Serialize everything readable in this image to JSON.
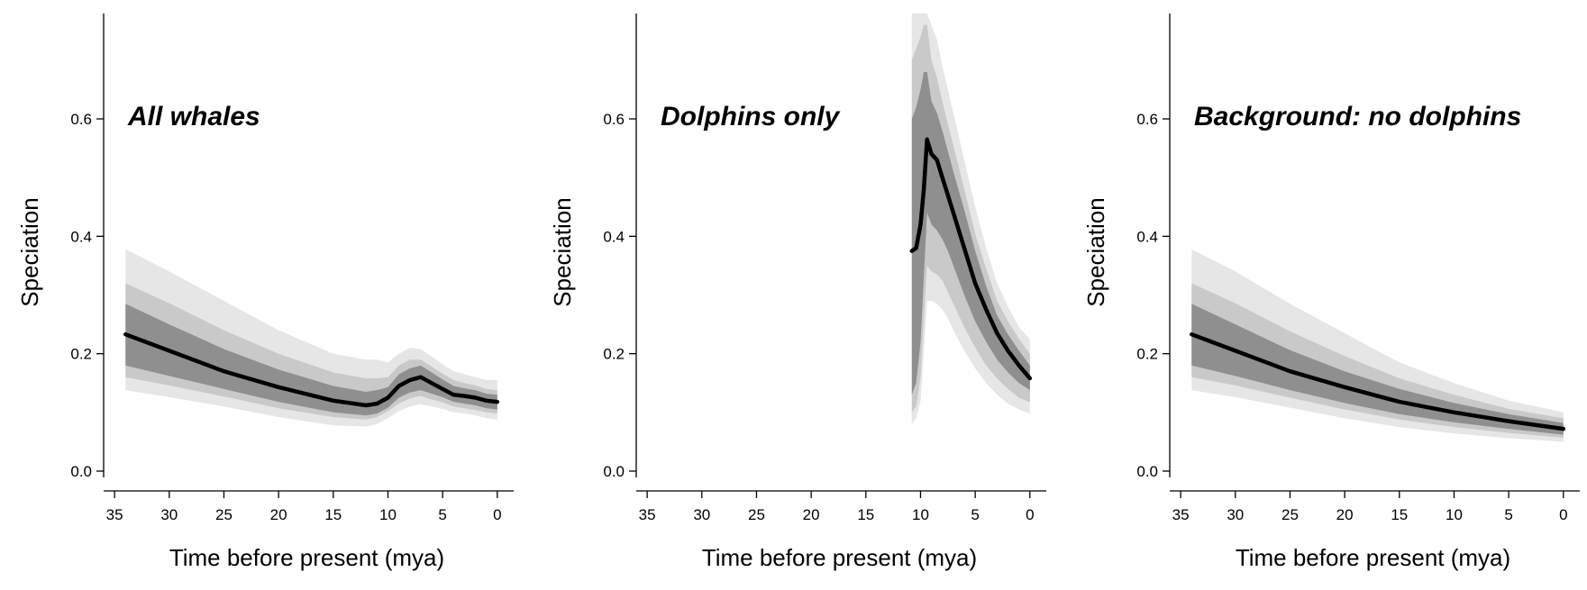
{
  "chart_data": [
    {
      "type": "area",
      "title": "All whales",
      "xlabel": "Time before present (mya)",
      "ylabel": "Speciation",
      "xlim": [
        36,
        -1.5
      ],
      "ylim": [
        -0.02,
        0.78
      ],
      "x_ticks": [
        35,
        30,
        25,
        20,
        15,
        10,
        5,
        0
      ],
      "y_ticks": [
        0.0,
        0.2,
        0.4,
        0.6
      ],
      "x_tick_labels": [
        "35",
        "30",
        "25",
        "20",
        "15",
        "10",
        "5",
        "0"
      ],
      "y_tick_labels": [
        "0.0",
        "0.2",
        "0.4",
        "0.6"
      ],
      "x": [
        34,
        30,
        25,
        20,
        15,
        12,
        11,
        10,
        9,
        8,
        7,
        6,
        5,
        4,
        3,
        2,
        1,
        0
      ],
      "median": [
        0.233,
        0.205,
        0.17,
        0.143,
        0.12,
        0.112,
        0.115,
        0.125,
        0.145,
        0.155,
        0.16,
        0.15,
        0.14,
        0.13,
        0.128,
        0.125,
        0.12,
        0.118
      ],
      "bands": [
        {
          "lower": [
            0.138,
            0.126,
            0.11,
            0.092,
            0.078,
            0.076,
            0.08,
            0.09,
            0.102,
            0.11,
            0.114,
            0.11,
            0.106,
            0.1,
            0.098,
            0.095,
            0.09,
            0.088
          ],
          "upper": [
            0.378,
            0.34,
            0.29,
            0.24,
            0.2,
            0.19,
            0.19,
            0.185,
            0.2,
            0.21,
            0.208,
            0.195,
            0.182,
            0.17,
            0.165,
            0.16,
            0.155,
            0.155
          ]
        },
        {
          "lower": [
            0.16,
            0.146,
            0.127,
            0.107,
            0.092,
            0.088,
            0.092,
            0.102,
            0.115,
            0.124,
            0.128,
            0.122,
            0.117,
            0.11,
            0.107,
            0.104,
            0.1,
            0.098
          ],
          "upper": [
            0.32,
            0.286,
            0.24,
            0.2,
            0.168,
            0.158,
            0.158,
            0.16,
            0.18,
            0.19,
            0.19,
            0.178,
            0.166,
            0.155,
            0.15,
            0.146,
            0.14,
            0.138
          ]
        },
        {
          "lower": [
            0.18,
            0.162,
            0.14,
            0.118,
            0.1,
            0.095,
            0.098,
            0.108,
            0.125,
            0.134,
            0.138,
            0.132,
            0.126,
            0.118,
            0.115,
            0.112,
            0.107,
            0.105
          ],
          "upper": [
            0.285,
            0.25,
            0.208,
            0.173,
            0.145,
            0.135,
            0.138,
            0.143,
            0.165,
            0.175,
            0.18,
            0.168,
            0.156,
            0.145,
            0.141,
            0.138,
            0.132,
            0.13
          ]
        }
      ],
      "band_colors": [
        "#e6e6e6",
        "#c9c9c9",
        "#8f8f8f"
      ],
      "line_color": "#000000"
    },
    {
      "type": "area",
      "title": "Dolphins only",
      "xlabel": "Time before present (mya)",
      "ylabel": "Speciation",
      "xlim": [
        36,
        -1.5
      ],
      "ylim": [
        -0.02,
        0.78
      ],
      "x_ticks": [
        35,
        30,
        25,
        20,
        15,
        10,
        5,
        0
      ],
      "y_ticks": [
        0.0,
        0.2,
        0.4,
        0.6
      ],
      "x_tick_labels": [
        "35",
        "30",
        "25",
        "20",
        "15",
        "10",
        "5",
        "0"
      ],
      "y_tick_labels": [
        "0.0",
        "0.2",
        "0.4",
        "0.6"
      ],
      "x": [
        10.8,
        10.4,
        10.0,
        9.7,
        9.4,
        9.0,
        8.5,
        8.0,
        7.5,
        7.0,
        6.0,
        5.0,
        4.0,
        3.0,
        2.0,
        1.0,
        0
      ],
      "median": [
        0.375,
        0.38,
        0.42,
        0.48,
        0.565,
        0.54,
        0.53,
        0.5,
        0.47,
        0.44,
        0.38,
        0.32,
        0.275,
        0.235,
        0.205,
        0.18,
        0.158
      ],
      "bands": [
        {
          "lower": [
            0.08,
            0.09,
            0.12,
            0.2,
            0.29,
            0.29,
            0.285,
            0.275,
            0.26,
            0.24,
            0.205,
            0.175,
            0.15,
            0.13,
            0.115,
            0.105,
            0.098
          ],
          "upper": [
            0.78,
            0.78,
            0.78,
            0.78,
            0.78,
            0.76,
            0.735,
            0.69,
            0.65,
            0.61,
            0.53,
            0.45,
            0.38,
            0.32,
            0.28,
            0.245,
            0.225
          ]
        },
        {
          "lower": [
            0.1,
            0.11,
            0.16,
            0.26,
            0.35,
            0.34,
            0.335,
            0.325,
            0.305,
            0.285,
            0.245,
            0.21,
            0.18,
            0.158,
            0.14,
            0.125,
            0.117
          ]
        },
        {
          "lower": [
            0.13,
            0.15,
            0.22,
            0.33,
            0.44,
            0.42,
            0.41,
            0.395,
            0.375,
            0.35,
            0.3,
            0.255,
            0.22,
            0.19,
            0.168,
            0.15,
            0.138
          ]
        }
      ],
      "band_uppers": [
        [
          0.7,
          0.72,
          0.74,
          0.76,
          0.76,
          0.7,
          0.67,
          0.63,
          0.59,
          0.555,
          0.48,
          0.405,
          0.345,
          0.29,
          0.255,
          0.225,
          0.2
        ],
        [
          0.6,
          0.62,
          0.65,
          0.68,
          0.68,
          0.63,
          0.61,
          0.58,
          0.545,
          0.51,
          0.445,
          0.375,
          0.315,
          0.265,
          0.233,
          0.205,
          0.18
        ]
      ],
      "band_colors": [
        "#e6e6e6",
        "#c9c9c9",
        "#8f8f8f"
      ],
      "line_color": "#000000"
    },
    {
      "type": "area",
      "title": "Background: no dolphins",
      "xlabel": "Time before present (mya)",
      "ylabel": "Speciation",
      "xlim": [
        36,
        -1.5
      ],
      "ylim": [
        -0.02,
        0.78
      ],
      "x_ticks": [
        35,
        30,
        25,
        20,
        15,
        10,
        5,
        0
      ],
      "y_ticks": [
        0.0,
        0.2,
        0.4,
        0.6
      ],
      "x_tick_labels": [
        "35",
        "30",
        "25",
        "20",
        "15",
        "10",
        "5",
        "0"
      ],
      "y_tick_labels": [
        "0.0",
        "0.2",
        "0.4",
        "0.6"
      ],
      "x": [
        34,
        30,
        25,
        20,
        15,
        10,
        5,
        0
      ],
      "median": [
        0.233,
        0.205,
        0.17,
        0.143,
        0.118,
        0.1,
        0.085,
        0.072
      ],
      "bands": [
        {
          "lower": [
            0.138,
            0.126,
            0.108,
            0.09,
            0.075,
            0.064,
            0.056,
            0.05
          ],
          "upper": [
            0.378,
            0.34,
            0.285,
            0.235,
            0.185,
            0.15,
            0.12,
            0.1
          ]
        },
        {
          "lower": [
            0.16,
            0.146,
            0.125,
            0.105,
            0.088,
            0.075,
            0.065,
            0.057
          ],
          "upper": [
            0.32,
            0.286,
            0.238,
            0.196,
            0.158,
            0.13,
            0.106,
            0.09
          ]
        },
        {
          "lower": [
            0.18,
            0.162,
            0.138,
            0.116,
            0.097,
            0.083,
            0.072,
            0.062
          ],
          "upper": [
            0.285,
            0.25,
            0.206,
            0.17,
            0.14,
            0.116,
            0.097,
            0.082
          ]
        }
      ],
      "band_colors": [
        "#e6e6e6",
        "#c9c9c9",
        "#8f8f8f"
      ],
      "line_color": "#000000"
    }
  ]
}
